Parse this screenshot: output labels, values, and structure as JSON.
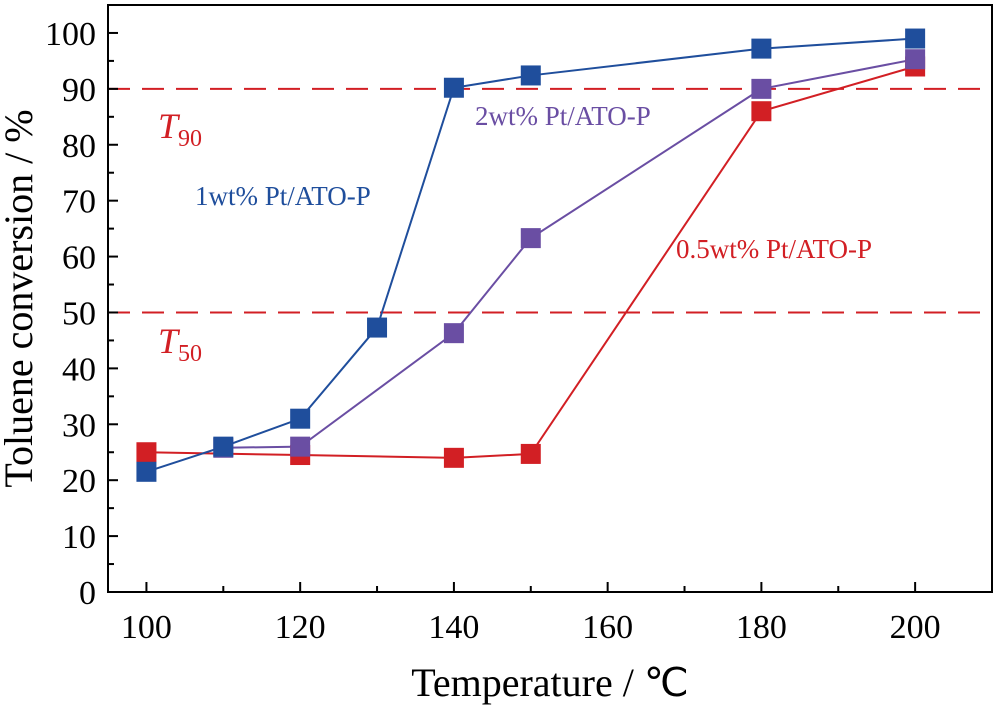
{
  "chart_data": {
    "type": "line",
    "xlabel": "Temperature / ℃",
    "ylabel": "Toluene conversion / %",
    "xlim": [
      95,
      210
    ],
    "ylim": [
      0,
      105
    ],
    "xticks": [
      100,
      120,
      140,
      160,
      180,
      200
    ],
    "yticks": [
      0,
      10,
      20,
      30,
      40,
      50,
      60,
      70,
      80,
      90,
      100
    ],
    "grid": false,
    "series": [
      {
        "name": "1wt%  Pt/ATO-P",
        "color": "#1f4e9c",
        "x": [
          100,
          110,
          120,
          130,
          140,
          150,
          180,
          200
        ],
        "y": [
          21.5,
          26,
          31,
          47.3,
          90.2,
          92.4,
          97.2,
          99
        ]
      },
      {
        "name": "2wt%  Pt/ATO-P",
        "color": "#6a4ea3",
        "x": [
          110,
          120,
          140,
          150,
          180,
          200
        ],
        "y": [
          25.8,
          26,
          46.3,
          63.3,
          90,
          95.3
        ]
      },
      {
        "name": "0.5wt% Pt/ATO-P",
        "color": "#d21f24",
        "x": [
          100,
          120,
          140,
          150,
          180,
          200
        ],
        "y": [
          25,
          24.5,
          24,
          24.7,
          86,
          94
        ]
      }
    ],
    "reference_lines": [
      {
        "name": "T",
        "subscript": "90",
        "y": 90,
        "color": "#d21f24"
      },
      {
        "name": "T",
        "subscript": "50",
        "y": 50,
        "color": "#d21f24"
      }
    ]
  }
}
